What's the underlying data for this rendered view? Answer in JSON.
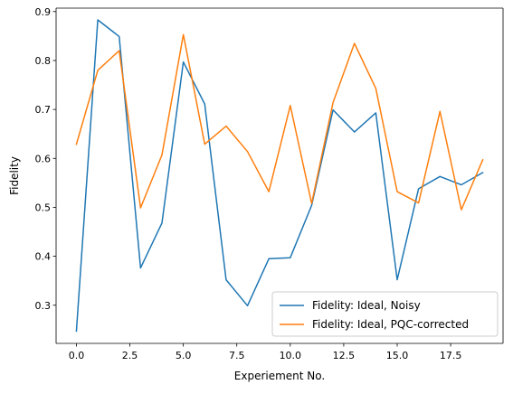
{
  "chart_data": {
    "type": "line",
    "title": "",
    "xlabel": "Experiement No.",
    "ylabel": "Fidelity",
    "x": [
      0,
      1,
      2,
      3,
      4,
      5,
      6,
      7,
      8,
      9,
      10,
      11,
      12,
      13,
      14,
      15,
      16,
      17,
      18,
      19
    ],
    "xlim": [
      -0.95,
      19.95
    ],
    "ylim": [
      0.222,
      0.907
    ],
    "xticks": [
      0.0,
      2.5,
      5.0,
      7.5,
      10.0,
      12.5,
      15.0,
      17.5
    ],
    "xtick_labels": [
      "0.0",
      "2.5",
      "5.0",
      "7.5",
      "10.0",
      "12.5",
      "15.0",
      "17.5"
    ],
    "yticks": [
      0.3,
      0.4,
      0.5,
      0.6,
      0.7,
      0.8,
      0.9
    ],
    "ytick_labels": [
      "0.3",
      "0.4",
      "0.5",
      "0.6",
      "0.7",
      "0.8",
      "0.9"
    ],
    "grid": false,
    "legend_position": "lower-right",
    "series": [
      {
        "name": "Fidelity: Ideal, Noisy",
        "color": "#1f77b4",
        "values": [
          0.247,
          0.883,
          0.849,
          0.376,
          0.468,
          0.797,
          0.711,
          0.352,
          0.299,
          0.395,
          0.397,
          0.504,
          0.699,
          0.654,
          0.693,
          0.352,
          0.538,
          0.563,
          0.546,
          0.571
        ]
      },
      {
        "name": "Fidelity: Ideal, PQC-corrected",
        "color": "#ff7f0e",
        "values": [
          0.629,
          0.78,
          0.82,
          0.499,
          0.607,
          0.853,
          0.629,
          0.666,
          0.614,
          0.532,
          0.708,
          0.508,
          0.714,
          0.835,
          0.743,
          0.532,
          0.509,
          0.696,
          0.495,
          0.597
        ]
      }
    ]
  }
}
